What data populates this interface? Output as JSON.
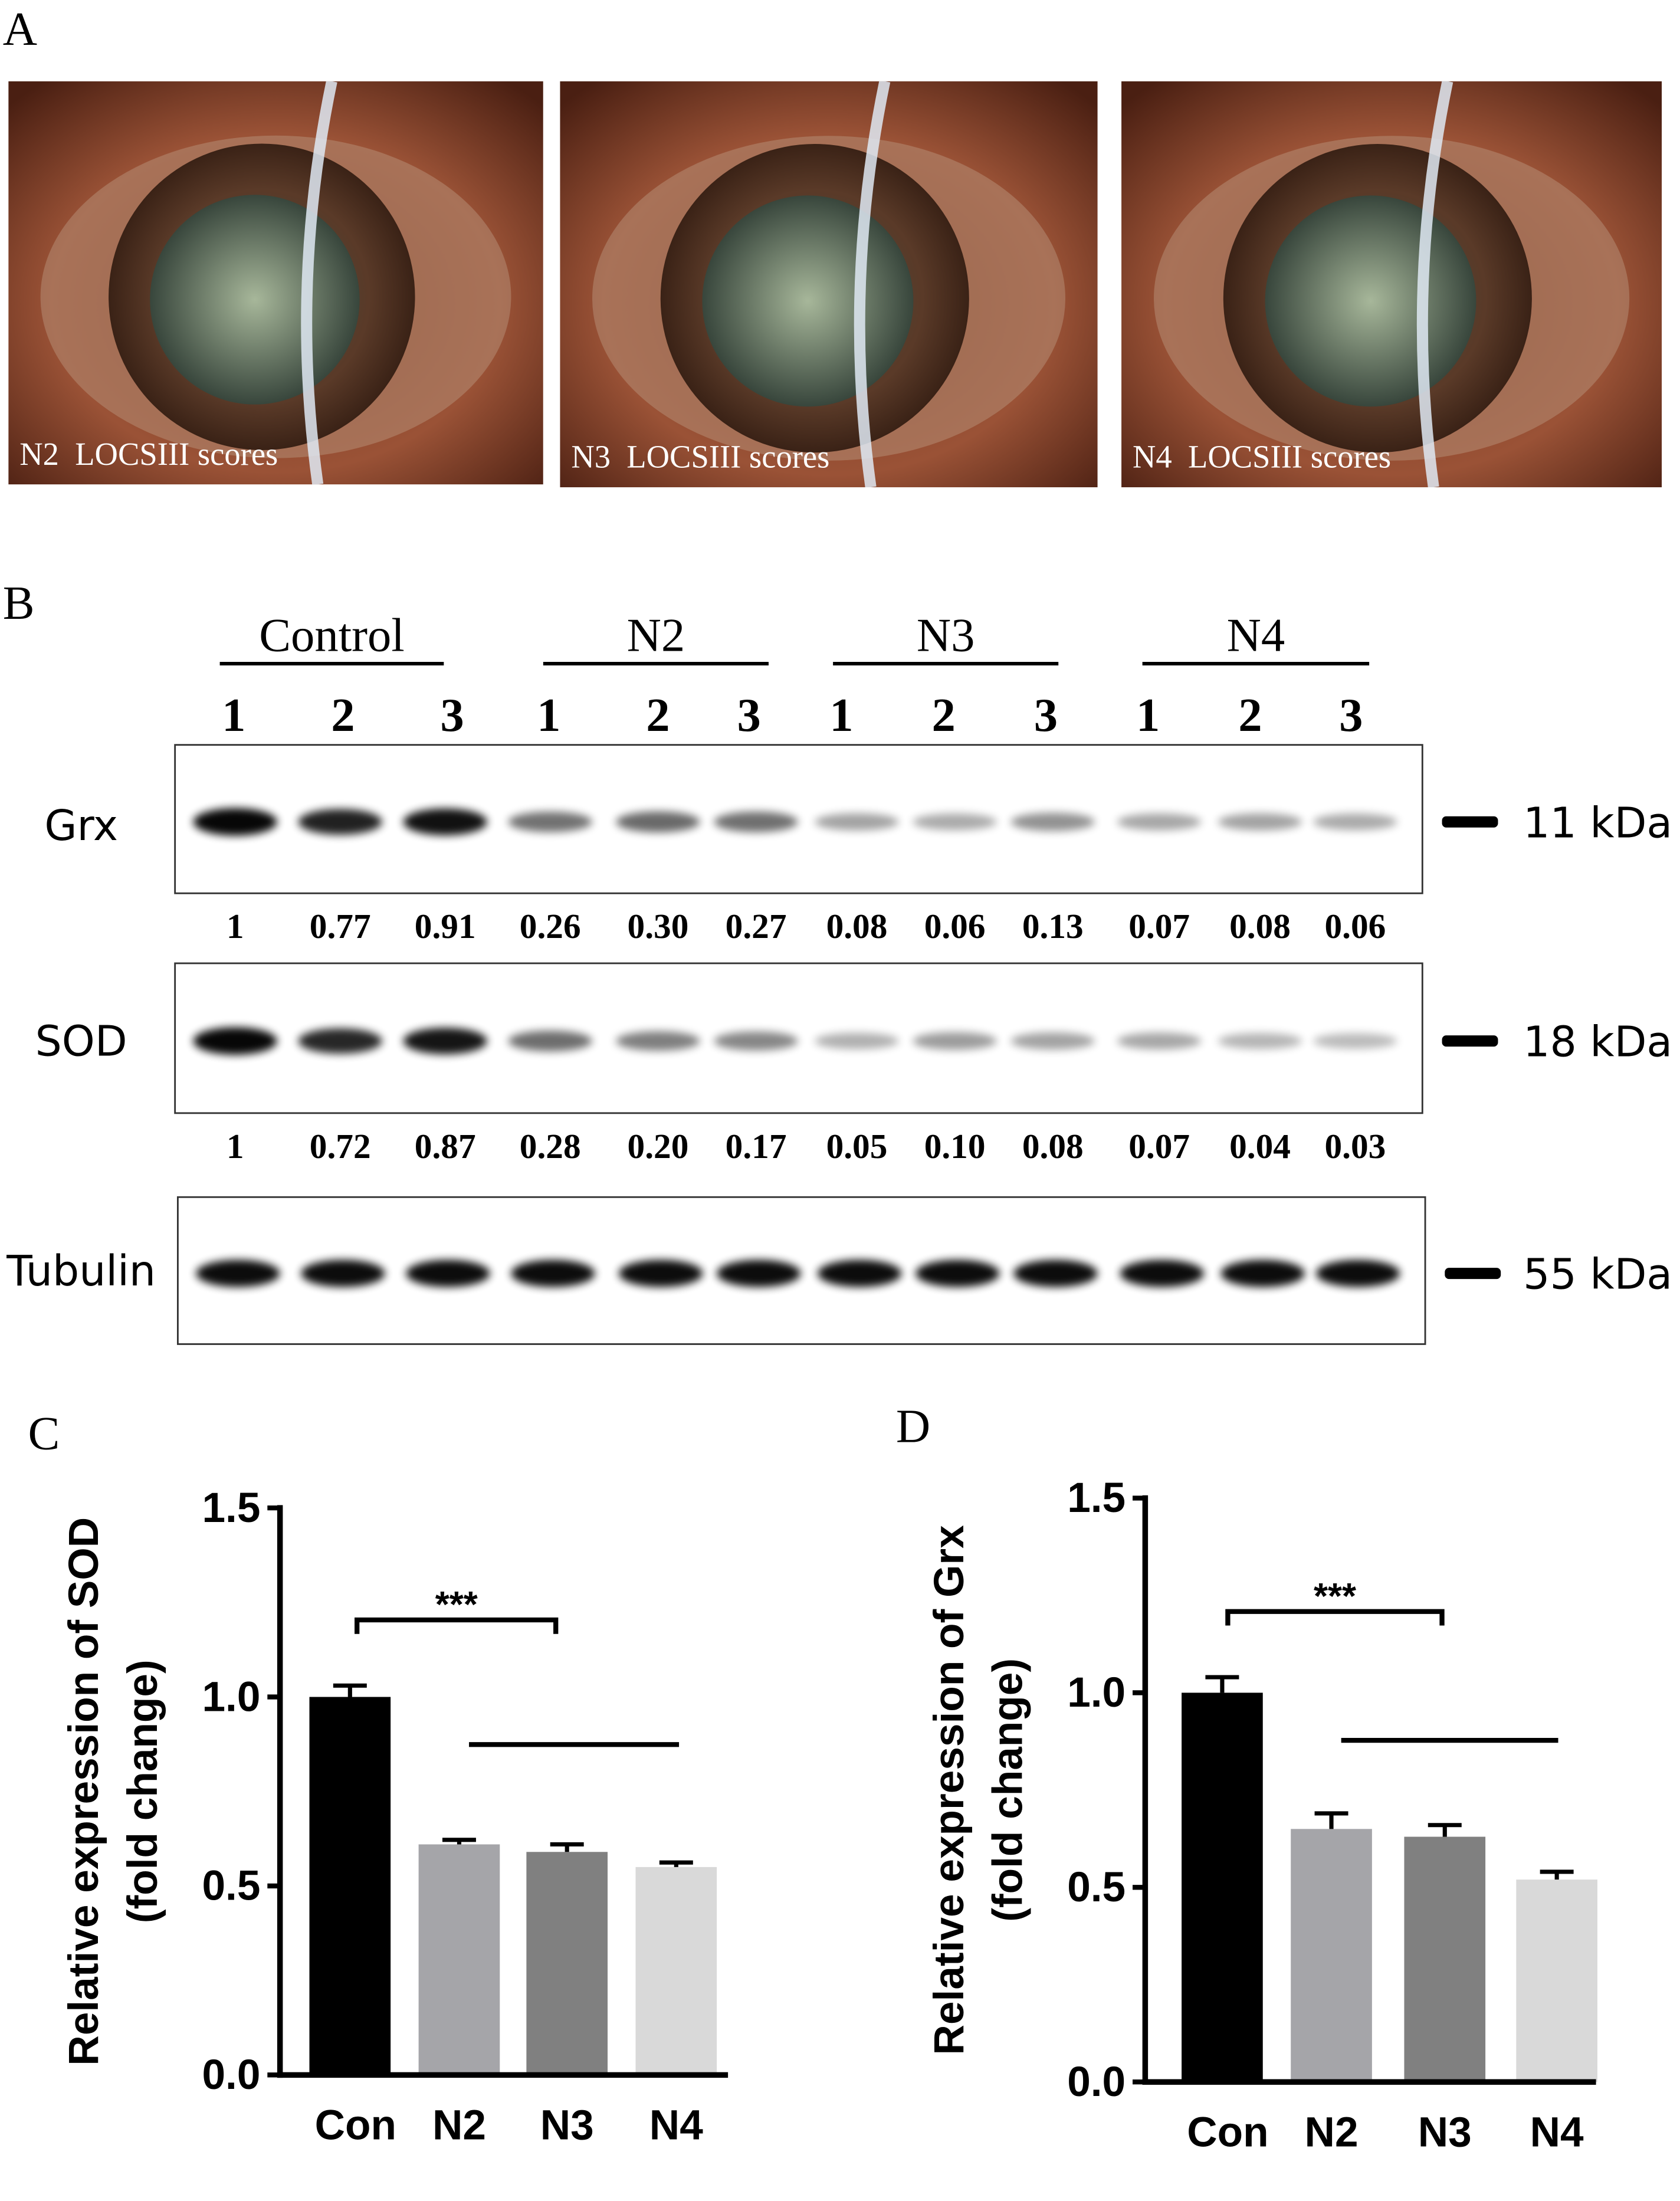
{
  "panel_a": {
    "label": "A",
    "images": [
      {
        "caption": "N2  LOCSIII scores"
      },
      {
        "caption": "N3  LOCSIII scores"
      },
      {
        "caption": "N4  LOCSIII scores"
      }
    ]
  },
  "panel_b": {
    "label": "B",
    "groups": [
      {
        "name": "Control",
        "lanes": [
          "1",
          "2",
          "3"
        ]
      },
      {
        "name": "N2",
        "lanes": [
          "1",
          "2",
          "3"
        ]
      },
      {
        "name": "N3",
        "lanes": [
          "1",
          "2",
          "3"
        ]
      },
      {
        "name": "N4",
        "lanes": [
          "1",
          "2",
          "3"
        ]
      }
    ],
    "rows": [
      {
        "name": "Grx",
        "size": "11 kDa",
        "quant": [
          "1",
          "0.77",
          "0.91",
          "0.26",
          "0.30",
          "0.27",
          "0.08",
          "0.06",
          "0.13",
          "0.07",
          "0.08",
          "0.06"
        ]
      },
      {
        "name": "SOD",
        "size": "18 kDa",
        "quant": [
          "1",
          "0.72",
          "0.87",
          "0.28",
          "0.20",
          "0.17",
          "0.05",
          "0.10",
          "0.08",
          "0.07",
          "0.04",
          "0.03"
        ]
      },
      {
        "name": "Tubulin",
        "size": "55 kDa"
      }
    ]
  },
  "chart_data": [
    {
      "type": "bar",
      "panel": "C",
      "ylabel": [
        "Relative expression of SOD",
        "(fold change)"
      ],
      "categories": [
        "Con",
        "N2",
        "N3",
        "N4"
      ],
      "values": [
        1.0,
        0.61,
        0.59,
        0.55
      ],
      "errors": [
        0.03,
        0.012,
        0.02,
        0.012
      ],
      "colors": [
        "#000000",
        "#a5a5a9",
        "#808080",
        "#d9d9d9"
      ],
      "ylim": [
        0,
        1.5
      ],
      "yticks": [
        {
          "value": 0,
          "label": "0.0"
        },
        {
          "value": 0.5,
          "label": "0.5"
        },
        {
          "value": 1.0,
          "label": "1.0"
        },
        {
          "value": 1.5,
          "label": "1.5"
        }
      ],
      "annotation": "***"
    },
    {
      "type": "bar",
      "panel": "D",
      "ylabel": [
        "Relative expression of Grx",
        "(fold change)"
      ],
      "categories": [
        "Con",
        "N2",
        "N3",
        "N4"
      ],
      "values": [
        1.0,
        0.65,
        0.63,
        0.52
      ],
      "errors": [
        0.04,
        0.04,
        0.03,
        0.02
      ],
      "colors": [
        "#000000",
        "#a5a5a9",
        "#808080",
        "#d9d9d9"
      ],
      "ylim": [
        0,
        1.5
      ],
      "yticks": [
        {
          "value": 0,
          "label": "0.0"
        },
        {
          "value": 0.5,
          "label": "0.5"
        },
        {
          "value": 1.0,
          "label": "1.0"
        },
        {
          "value": 1.5,
          "label": "1.5"
        }
      ],
      "annotation": "***"
    }
  ]
}
